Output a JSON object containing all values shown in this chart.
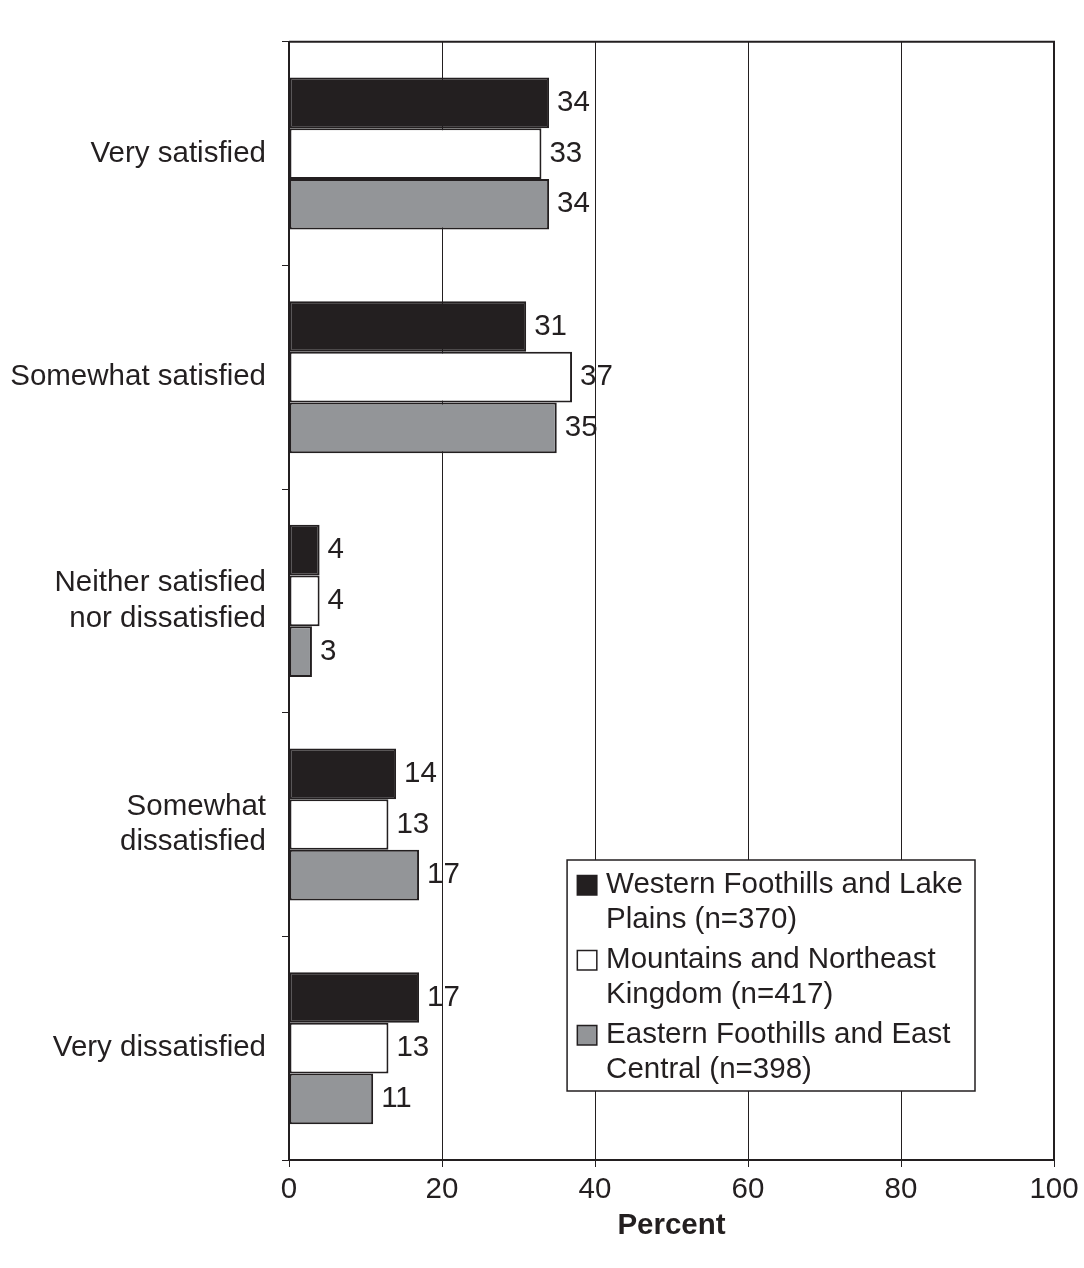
{
  "chart_data": {
    "type": "bar",
    "orientation": "horizontal",
    "categories": [
      "Very satisfied",
      "Somewhat satisfied",
      "Neither satisfied nor dissatisfied",
      "Somewhat dissatisfied",
      "Very dissatisfied"
    ],
    "series": [
      {
        "name": "Western Foothills and Lake Plains (n=370)",
        "color": "#231f20",
        "values": [
          34,
          31,
          4,
          14,
          17
        ]
      },
      {
        "name": "Mountains and Northeast Kingdom (n=417)",
        "color": "#ffffff",
        "values": [
          33,
          37,
          4,
          13,
          13
        ]
      },
      {
        "name": "Eastern Foothills and East Central (n=398)",
        "color": "#939598",
        "values": [
          34,
          35,
          3,
          17,
          11
        ]
      }
    ],
    "xlim": [
      0,
      100
    ],
    "xticks": [
      0,
      20,
      40,
      60,
      80,
      100
    ],
    "xlabel": "Percent",
    "grid": "x",
    "legend": "bottom right",
    "data_labels": true
  }
}
